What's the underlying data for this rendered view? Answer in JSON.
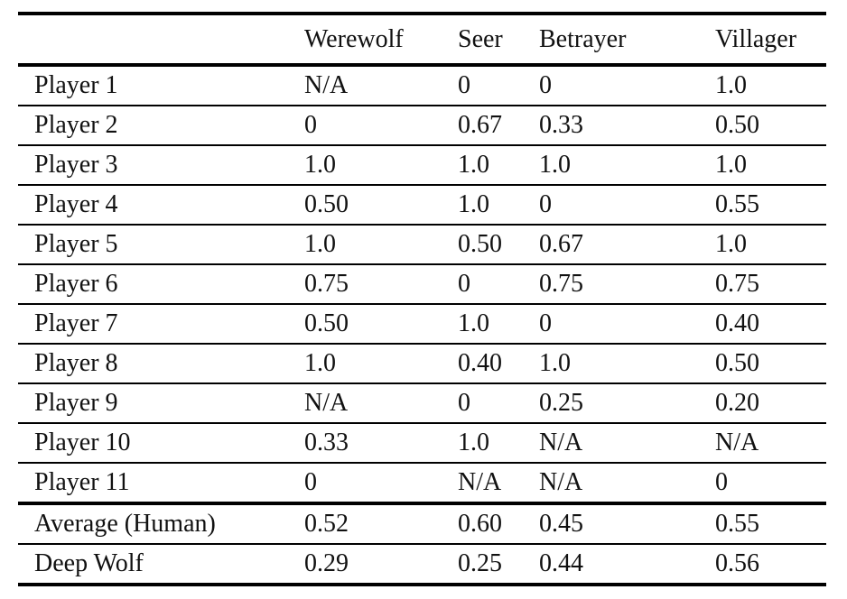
{
  "page": {
    "background_color": "#ffffff",
    "text_color": "#111111",
    "rule_color": "#000000"
  },
  "table": {
    "corner_label": "",
    "columns": [
      "Werewolf",
      "Seer",
      "Betrayer",
      "Villager"
    ],
    "rows": [
      {
        "label": "Player 1",
        "values": [
          "N/A",
          "0",
          "0",
          "1.0"
        ]
      },
      {
        "label": "Player 2",
        "values": [
          "0",
          "0.67",
          "0.33",
          "0.50"
        ]
      },
      {
        "label": "Player 3",
        "values": [
          "1.0",
          "1.0",
          "1.0",
          "1.0"
        ]
      },
      {
        "label": "Player 4",
        "values": [
          "0.50",
          "1.0",
          "0",
          "0.55"
        ]
      },
      {
        "label": "Player 5",
        "values": [
          "1.0",
          "0.50",
          "0.67",
          "1.0"
        ]
      },
      {
        "label": "Player 6",
        "values": [
          "0.75",
          "0",
          "0.75",
          "0.75"
        ]
      },
      {
        "label": "Player 7",
        "values": [
          "0.50",
          "1.0",
          "0",
          "0.40"
        ]
      },
      {
        "label": "Player 8",
        "values": [
          "1.0",
          "0.40",
          "1.0",
          "0.50"
        ]
      },
      {
        "label": "Player 9",
        "values": [
          "N/A",
          "0",
          "0.25",
          "0.20"
        ]
      },
      {
        "label": "Player 10",
        "values": [
          "0.33",
          "1.0",
          "N/A",
          "N/A"
        ]
      },
      {
        "label": "Player 11",
        "values": [
          "0",
          "N/A",
          "N/A",
          "0"
        ]
      },
      {
        "label": "Average (Human)",
        "values": [
          "0.52",
          "0.60",
          "0.45",
          "0.55"
        ],
        "divider_above": true
      },
      {
        "label": "Deep Wolf",
        "values": [
          "0.29",
          "0.25",
          "0.44",
          "0.56"
        ]
      }
    ]
  }
}
